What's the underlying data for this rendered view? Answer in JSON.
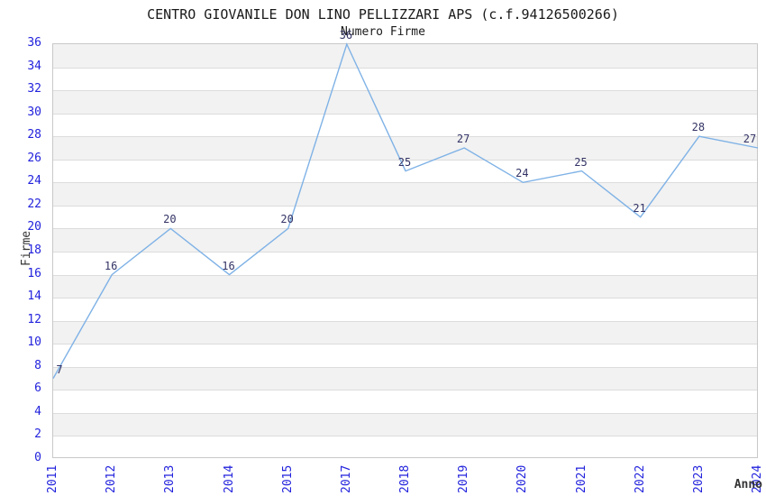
{
  "chart_data": {
    "type": "line",
    "title": "CENTRO GIOVANILE DON LINO PELLIZZARI APS (c.f.94126500266)",
    "subtitle": "Numero Firme",
    "xlabel": "Anno",
    "ylabel": "Firme",
    "categories": [
      "2011",
      "2012",
      "2013",
      "2014",
      "2015",
      "2017",
      "2018",
      "2019",
      "2020",
      "2021",
      "2022",
      "2023",
      "2024"
    ],
    "values": [
      7,
      16,
      20,
      16,
      20,
      36,
      25,
      27,
      24,
      25,
      21,
      28,
      27
    ],
    "y_ticks": [
      0,
      2,
      4,
      6,
      8,
      10,
      12,
      14,
      16,
      18,
      20,
      22,
      24,
      26,
      28,
      30,
      32,
      34,
      36
    ],
    "ylim": [
      0,
      36
    ],
    "grid": "horizontal gridlines every 2 units with alternating gray bands",
    "legend_position": "none",
    "colors": {
      "line": "#7fb2e6",
      "tick_label": "#2222dd",
      "data_label": "#333366",
      "band_fill": "#f2f2f2",
      "grid_line": "#dcdcdc",
      "plot_border": "#c8c8c8",
      "title_text": "#1a1a1a",
      "axis_title_text": "#333333",
      "background": "#ffffff"
    }
  }
}
